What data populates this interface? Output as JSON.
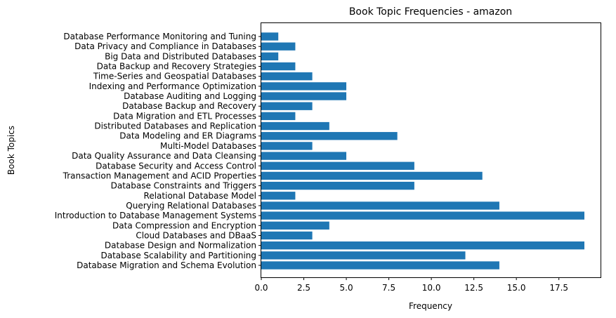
{
  "chart_data": {
    "type": "bar",
    "orientation": "horizontal",
    "title": "Book Topic Frequencies - amazon",
    "xlabel": "Frequency",
    "ylabel": "Book Topics",
    "xlim": [
      0,
      19.95
    ],
    "xticks": [
      0,
      2.5,
      5,
      7.5,
      10,
      12.5,
      15,
      17.5
    ],
    "xtick_labels": [
      "0.0",
      "2.5",
      "5.0",
      "7.5",
      "10.0",
      "12.5",
      "15.0",
      "17.5"
    ],
    "grid": false,
    "bar_color": "#1f77b4",
    "categories": [
      "Database Migration and Schema Evolution",
      "Database Scalability and Partitioning",
      "Database Design and Normalization",
      "Cloud Databases and DBaaS",
      "Data Compression and Encryption",
      "Introduction to Database Management Systems",
      "Querying Relational Databases",
      "Relational Database Model",
      "Database Constraints and Triggers",
      "Transaction Management and ACID Properties",
      "Database Security and Access Control",
      "Data Quality Assurance and Data Cleansing",
      "Multi-Model Databases",
      "Data Modeling and ER Diagrams",
      "Distributed Databases and Replication",
      "Data Migration and ETL Processes",
      "Database Backup and Recovery",
      "Database Auditing and Logging",
      "Indexing and Performance Optimization",
      "Time-Series and Geospatial Databases",
      "Data Backup and Recovery Strategies",
      "Big Data and Distributed Databases",
      "Data Privacy and Compliance in Databases",
      "Database Performance Monitoring and Tuning"
    ],
    "values": [
      14,
      12,
      19,
      3,
      4,
      19,
      14,
      2,
      9,
      13,
      9,
      5,
      3,
      8,
      4,
      2,
      3,
      5,
      5,
      3,
      2,
      1,
      2,
      1
    ]
  }
}
